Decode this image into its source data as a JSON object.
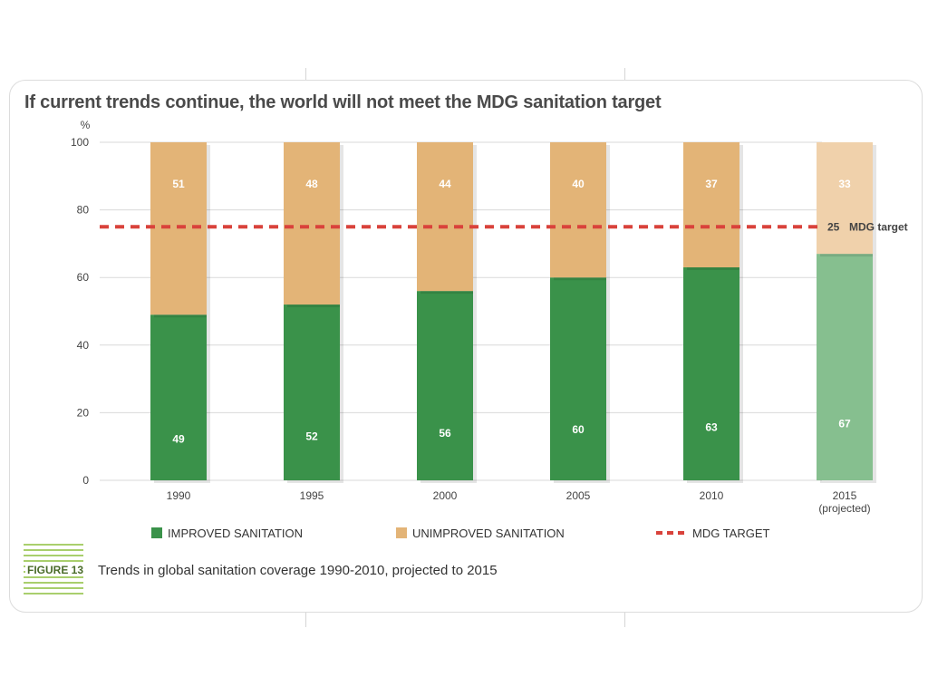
{
  "chart_data": {
    "type": "bar",
    "stacked": true,
    "title": "If current trends continue, the world will not meet the MDG sanitation target",
    "ylabel": "%",
    "xlabel": "",
    "ylim": [
      0,
      100
    ],
    "yticks": [
      0,
      20,
      40,
      60,
      80,
      100
    ],
    "grid": true,
    "categories": [
      "1990",
      "1995",
      "2000",
      "2005",
      "2010",
      "2015"
    ],
    "category_notes": [
      "",
      "",
      "",
      "",
      "",
      "(projected)"
    ],
    "series": [
      {
        "name": "IMPROVED SANITATION",
        "values": [
          49,
          52,
          56,
          60,
          63,
          67
        ],
        "color": "#3a924a",
        "projected_color": "#86bf8f"
      },
      {
        "name": "UNIMPROVED SANITATION",
        "values": [
          51,
          48,
          44,
          40,
          37,
          33
        ],
        "color": "#e3b477",
        "projected_color": "#f0d1ab"
      }
    ],
    "reference_line": {
      "name": "MDG TARGET",
      "y": 75,
      "label_value": "25",
      "label_text": "MDG target",
      "color": "#d9423b",
      "style": "dashed"
    },
    "legend_position": "bottom"
  },
  "figure": {
    "label": "FIGURE 13",
    "caption": "Trends in global sanitation coverage 1990-2010, projected to 2015"
  }
}
